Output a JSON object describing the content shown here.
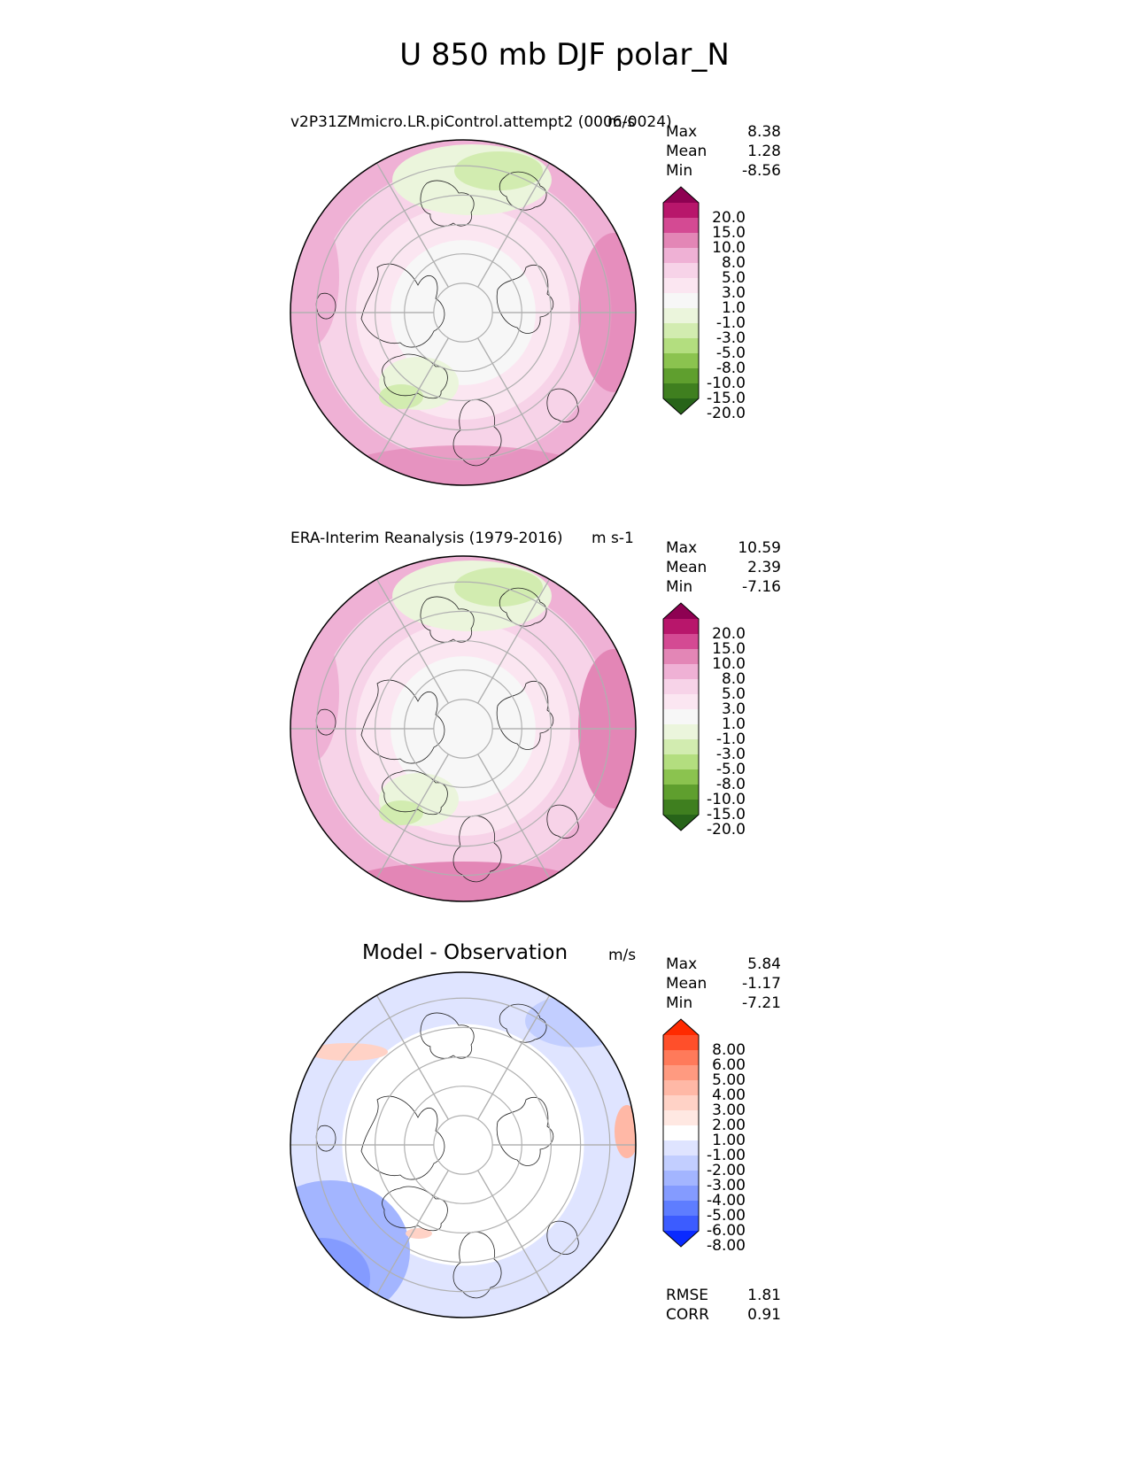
{
  "title": "U 850 mb DJF polar_N",
  "chart_data": [
    {
      "type": "heatmap",
      "projection": "north-polar-stereographic",
      "title": "v2P31ZMmicro.LR.piControl.attempt2 (0006-0024)",
      "units": "m/s",
      "stats": {
        "max": "8.38",
        "mean": "1.28",
        "min": "-8.56"
      },
      "colorbar": {
        "labels": [
          "20.0",
          "15.0",
          "10.0",
          "8.0",
          "5.0",
          "3.0",
          "1.0",
          "-1.0",
          "-3.0",
          "-5.0",
          "-8.0",
          "-10.0",
          "-15.0",
          "-20.0"
        ],
        "colors": [
          "#8e0152",
          "#b8166b",
          "#d44a93",
          "#e386b6",
          "#efb1d5",
          "#f7d3e8",
          "#fbe6f1",
          "#f7f7f7",
          "#ebf5dc",
          "#d2ecb0",
          "#b3de7f",
          "#8bc34f",
          "#5f9f2e",
          "#3f7f1f",
          "#276419"
        ]
      }
    },
    {
      "type": "heatmap",
      "projection": "north-polar-stereographic",
      "title": "ERA-Interim Reanalysis (1979-2016)",
      "units": "m s-1",
      "stats": {
        "max": "10.59",
        "mean": "2.39",
        "min": "-7.16"
      },
      "colorbar": {
        "labels": [
          "20.0",
          "15.0",
          "10.0",
          "8.0",
          "5.0",
          "3.0",
          "1.0",
          "-1.0",
          "-3.0",
          "-5.0",
          "-8.0",
          "-10.0",
          "-15.0",
          "-20.0"
        ],
        "colors": [
          "#8e0152",
          "#b8166b",
          "#d44a93",
          "#e386b6",
          "#efb1d5",
          "#f7d3e8",
          "#fbe6f1",
          "#f7f7f7",
          "#ebf5dc",
          "#d2ecb0",
          "#b3de7f",
          "#8bc34f",
          "#5f9f2e",
          "#3f7f1f",
          "#276419"
        ]
      }
    },
    {
      "type": "heatmap",
      "projection": "north-polar-stereographic",
      "title": "Model - Observation",
      "units": "m/s",
      "stats": {
        "max": "5.84",
        "mean": "-1.17",
        "min": "-7.21",
        "rmse": "1.81",
        "corr": "0.91"
      },
      "colorbar": {
        "labels": [
          "8.00",
          "6.00",
          "5.00",
          "4.00",
          "3.00",
          "2.00",
          "1.00",
          "-1.00",
          "-2.00",
          "-3.00",
          "-4.00",
          "-5.00",
          "-6.00",
          "-8.00"
        ],
        "colors": [
          "#ff2a00",
          "#ff4f2a",
          "#ff7a5a",
          "#ff9a80",
          "#ffb8a6",
          "#ffd2c6",
          "#ffe8e2",
          "#ffffff",
          "#dfe4ff",
          "#c2ceff",
          "#a3b5ff",
          "#849bff",
          "#5e7dff",
          "#3c5cff",
          "#0a2aff"
        ]
      }
    }
  ],
  "labels": {
    "max": "Max",
    "mean": "Mean",
    "min": "Min",
    "rmse": "RMSE",
    "corr": "CORR"
  }
}
